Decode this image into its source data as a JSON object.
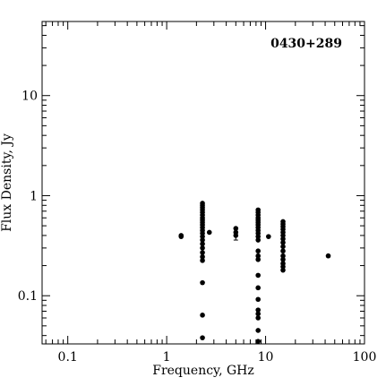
{
  "chart_data": {
    "type": "scatter",
    "title": "0430+289",
    "xlabel": "Frequency, GHz",
    "ylabel": "Flux Density, Jy",
    "xscale": "log",
    "yscale": "log",
    "xlim": [
      0.055,
      100
    ],
    "ylim": [
      0.033,
      55
    ],
    "grid": false,
    "legend": "none",
    "x_ticks": [
      {
        "value": 0.1,
        "label": "0.1"
      },
      {
        "value": 1,
        "label": "1"
      },
      {
        "value": 10,
        "label": "10"
      },
      {
        "value": 100,
        "label": "100"
      }
    ],
    "y_ticks": [
      {
        "value": 0.1,
        "label": "0.1"
      },
      {
        "value": 1,
        "label": "1"
      },
      {
        "value": 10,
        "label": "10"
      }
    ],
    "marker_color": "#000000",
    "points": [
      {
        "x": 1.4,
        "y": 0.4
      },
      {
        "x": 1.4,
        "y": 0.39
      },
      {
        "x": 2.3,
        "y": 0.84
      },
      {
        "x": 2.3,
        "y": 0.8
      },
      {
        "x": 2.3,
        "y": 0.76
      },
      {
        "x": 2.3,
        "y": 0.72
      },
      {
        "x": 2.3,
        "y": 0.68
      },
      {
        "x": 2.3,
        "y": 0.64
      },
      {
        "x": 2.3,
        "y": 0.6
      },
      {
        "x": 2.3,
        "y": 0.57
      },
      {
        "x": 2.3,
        "y": 0.54
      },
      {
        "x": 2.3,
        "y": 0.51
      },
      {
        "x": 2.3,
        "y": 0.48
      },
      {
        "x": 2.3,
        "y": 0.45
      },
      {
        "x": 2.3,
        "y": 0.42
      },
      {
        "x": 2.3,
        "y": 0.39
      },
      {
        "x": 2.3,
        "y": 0.36
      },
      {
        "x": 2.3,
        "y": 0.33
      },
      {
        "x": 2.3,
        "y": 0.3
      },
      {
        "x": 2.3,
        "y": 0.27
      },
      {
        "x": 2.3,
        "y": 0.245
      },
      {
        "x": 2.3,
        "y": 0.225
      },
      {
        "x": 2.3,
        "y": 0.135
      },
      {
        "x": 2.3,
        "y": 0.064
      },
      {
        "x": 2.3,
        "y": 0.038
      },
      {
        "x": 2.7,
        "y": 0.43
      },
      {
        "x": 5.0,
        "y": 0.47
      },
      {
        "x": 5.0,
        "y": 0.43
      },
      {
        "x": 5.0,
        "y": 0.4,
        "error": [
          0.36,
          0.44
        ]
      },
      {
        "x": 8.4,
        "y": 0.72
      },
      {
        "x": 8.4,
        "y": 0.68
      },
      {
        "x": 8.4,
        "y": 0.64
      },
      {
        "x": 8.4,
        "y": 0.6
      },
      {
        "x": 8.4,
        "y": 0.57
      },
      {
        "x": 8.4,
        "y": 0.54
      },
      {
        "x": 8.4,
        "y": 0.51
      },
      {
        "x": 8.4,
        "y": 0.48
      },
      {
        "x": 8.4,
        "y": 0.45
      },
      {
        "x": 8.4,
        "y": 0.42
      },
      {
        "x": 8.4,
        "y": 0.39
      },
      {
        "x": 8.4,
        "y": 0.36
      },
      {
        "x": 8.4,
        "y": 0.28
      },
      {
        "x": 8.4,
        "y": 0.25
      },
      {
        "x": 8.4,
        "y": 0.23
      },
      {
        "x": 8.4,
        "y": 0.16
      },
      {
        "x": 8.4,
        "y": 0.12
      },
      {
        "x": 8.4,
        "y": 0.092
      },
      {
        "x": 8.4,
        "y": 0.072
      },
      {
        "x": 8.4,
        "y": 0.066
      },
      {
        "x": 8.4,
        "y": 0.06
      },
      {
        "x": 8.4,
        "y": 0.045
      },
      {
        "x": 8.4,
        "y": 0.035
      },
      {
        "x": 10.7,
        "y": 0.39
      },
      {
        "x": 15.0,
        "y": 0.55
      },
      {
        "x": 15.0,
        "y": 0.52
      },
      {
        "x": 15.0,
        "y": 0.49
      },
      {
        "x": 15.0,
        "y": 0.46
      },
      {
        "x": 15.0,
        "y": 0.43
      },
      {
        "x": 15.0,
        "y": 0.4
      },
      {
        "x": 15.0,
        "y": 0.37
      },
      {
        "x": 15.0,
        "y": 0.34
      },
      {
        "x": 15.0,
        "y": 0.31
      },
      {
        "x": 15.0,
        "y": 0.28
      },
      {
        "x": 15.0,
        "y": 0.25
      },
      {
        "x": 15.0,
        "y": 0.23
      },
      {
        "x": 15.0,
        "y": 0.21
      },
      {
        "x": 15.0,
        "y": 0.195
      },
      {
        "x": 15.0,
        "y": 0.18
      },
      {
        "x": 43.0,
        "y": 0.25
      }
    ]
  }
}
